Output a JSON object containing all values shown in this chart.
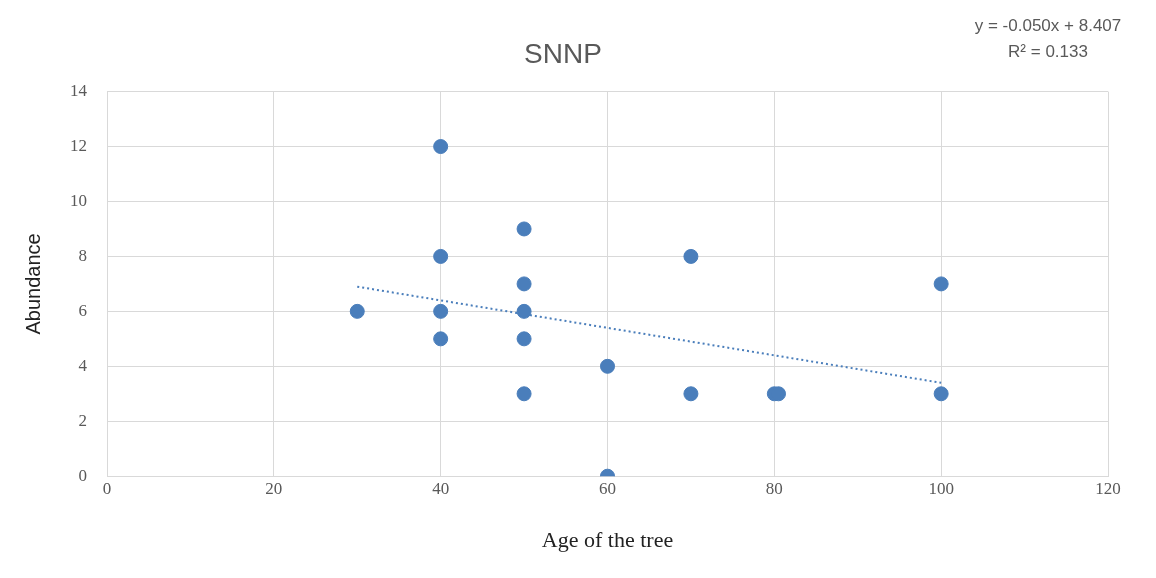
{
  "chart_data": {
    "type": "scatter",
    "title": "SNNP",
    "xlabel": "Age of the tree",
    "ylabel": "Abundance",
    "annotations": [
      "y = -0.050x + 8.407",
      "R² = 0.133"
    ],
    "series": [
      {
        "type": "scatter",
        "color": "#4a7ebb",
        "marker": "circle",
        "x": [
          30,
          40,
          40,
          40,
          40,
          50,
          50,
          50,
          50,
          50,
          60,
          60,
          70,
          70,
          80,
          80.5,
          100,
          100
        ],
        "values": [
          6,
          12,
          8,
          6,
          5,
          9,
          7,
          6,
          5,
          3,
          4,
          0,
          8,
          3,
          3,
          3,
          7,
          3
        ]
      },
      {
        "type": "line",
        "color": "#4a7ebb",
        "line_style": "dotted",
        "marker": "none",
        "x": [
          30,
          100
        ],
        "values": [
          6.9,
          3.4
        ]
      }
    ],
    "xlim": [
      0,
      120
    ],
    "xticks": [
      0,
      20,
      40,
      60,
      80,
      100,
      120
    ],
    "ylim": [
      0,
      14
    ],
    "yticks": [
      0,
      2,
      4,
      6,
      8,
      10,
      12,
      14
    ],
    "grid": true,
    "legend": false
  }
}
